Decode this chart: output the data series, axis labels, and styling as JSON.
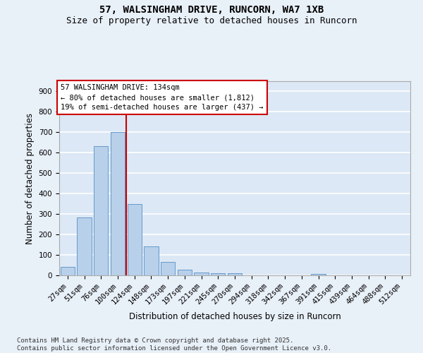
{
  "title_line1": "57, WALSINGHAM DRIVE, RUNCORN, WA7 1XB",
  "title_line2": "Size of property relative to detached houses in Runcorn",
  "xlabel": "Distribution of detached houses by size in Runcorn",
  "ylabel": "Number of detached properties",
  "categories": [
    "27sqm",
    "51sqm",
    "76sqm",
    "100sqm",
    "124sqm",
    "148sqm",
    "173sqm",
    "197sqm",
    "221sqm",
    "245sqm",
    "270sqm",
    "294sqm",
    "318sqm",
    "342sqm",
    "367sqm",
    "391sqm",
    "415sqm",
    "439sqm",
    "464sqm",
    "488sqm",
    "512sqm"
  ],
  "values": [
    42,
    283,
    632,
    700,
    350,
    143,
    65,
    28,
    13,
    11,
    11,
    0,
    0,
    0,
    0,
    7,
    0,
    0,
    0,
    0,
    0
  ],
  "bar_color": "#b8d0ea",
  "bar_edge_color": "#6699cc",
  "background_color": "#e8f0f8",
  "plot_bg_color": "#dce8f5",
  "grid_color": "#ffffff",
  "vline_color": "#cc0000",
  "vline_x": 3.5,
  "annotation_text_line1": "57 WALSINGHAM DRIVE: 134sqm",
  "annotation_text_line2": "← 80% of detached houses are smaller (1,812)",
  "annotation_text_line3": "19% of semi-detached houses are larger (437) →",
  "ylim": [
    0,
    950
  ],
  "yticks": [
    0,
    100,
    200,
    300,
    400,
    500,
    600,
    700,
    800,
    900
  ],
  "footer_line1": "Contains HM Land Registry data © Crown copyright and database right 2025.",
  "footer_line2": "Contains public sector information licensed under the Open Government Licence v3.0.",
  "title_fontsize": 10,
  "subtitle_fontsize": 9,
  "axis_label_fontsize": 8.5,
  "tick_fontsize": 7.5,
  "annotation_fontsize": 7.5,
  "footer_fontsize": 6.5
}
